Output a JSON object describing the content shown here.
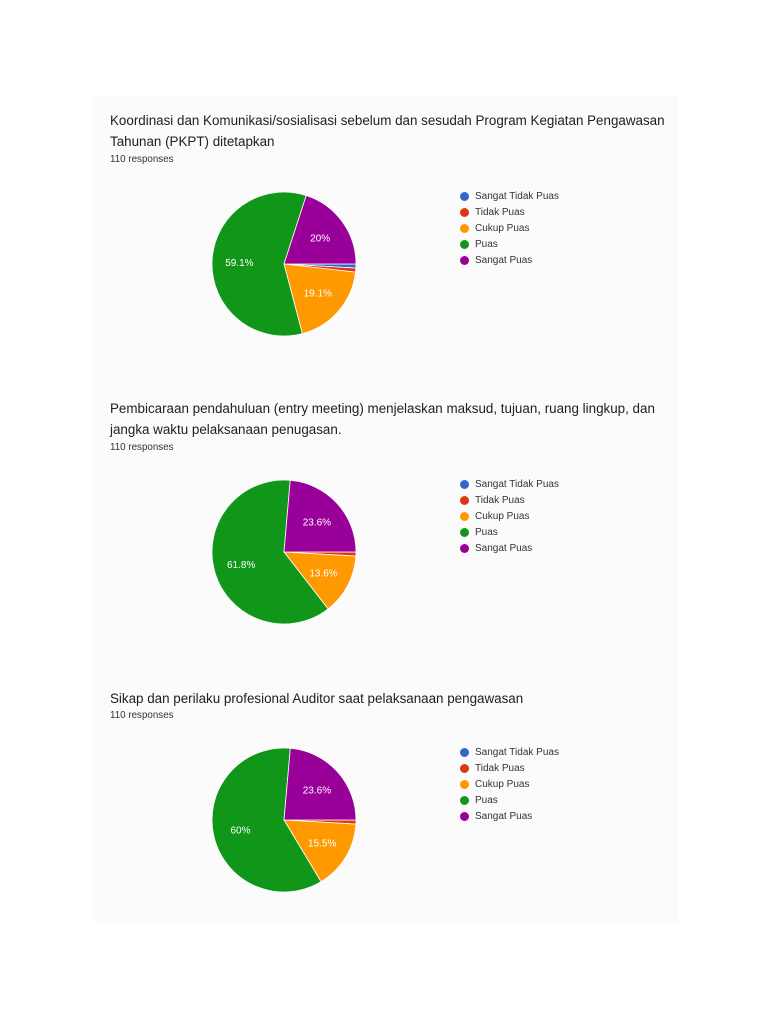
{
  "legend_labels": [
    "Sangat Tidak Puas",
    "Tidak Puas",
    "Cukup Puas",
    "Puas",
    "Sangat Puas"
  ],
  "colors": {
    "sangat_tidak_puas": "#3366cc",
    "tidak_puas": "#dc3912",
    "cukup_puas": "#ff9900",
    "puas": "#109618",
    "sangat_puas": "#990099"
  },
  "cards": [
    {
      "title": "Koordinasi dan Komunikasi/sosialisasi sebelum dan sesudah Program Kegiatan Pengawasan Tahunan (PKPT) ditetapkan",
      "responses": "110 responses",
      "labels": {
        "puas": "59.1%",
        "sangat_puas": "20%",
        "cukup_puas": "19.1%"
      }
    },
    {
      "title": "Pembicaraan pendahuluan (entry meeting) menjelaskan maksud, tujuan, ruang lingkup, dan jangka waktu pelaksanaan penugasan.",
      "responses": "110 responses",
      "labels": {
        "puas": "61.8%",
        "sangat_puas": "23.6%",
        "cukup_puas": "13.6%"
      }
    },
    {
      "title": "Sikap dan perilaku profesional Auditor saat pelaksanaan pengawasan",
      "responses": "110 responses",
      "labels": {
        "puas": "60%",
        "sangat_puas": "23.6%",
        "cukup_puas": "15.5%"
      }
    }
  ],
  "chart_data": [
    {
      "type": "pie",
      "title": "Koordinasi dan Komunikasi/sosialisasi sebelum dan sesudah Program Kegiatan Pengawasan Tahunan (PKPT) ditetapkan",
      "subtitle": "110 responses",
      "categories": [
        "Sangat Tidak Puas",
        "Tidak Puas",
        "Cukup Puas",
        "Puas",
        "Sangat Puas"
      ],
      "values": [
        0.9,
        0.9,
        19.1,
        59.1,
        20.0
      ],
      "counts": [
        1,
        1,
        21,
        65,
        22
      ],
      "data_labels": [
        "",
        "",
        "19.1%",
        "59.1%",
        "20%"
      ],
      "colors": [
        "#3366cc",
        "#dc3912",
        "#ff9900",
        "#109618",
        "#990099"
      ],
      "legend_position": "right"
    },
    {
      "type": "pie",
      "title": "Pembicaraan pendahuluan (entry meeting) menjelaskan maksud, tujuan, ruang lingkup, dan jangka waktu pelaksanaan penugasan.",
      "subtitle": "110 responses",
      "categories": [
        "Sangat Tidak Puas",
        "Tidak Puas",
        "Cukup Puas",
        "Puas",
        "Sangat Puas"
      ],
      "values": [
        0.0,
        0.9,
        13.6,
        61.8,
        23.6
      ],
      "counts": [
        0,
        1,
        15,
        68,
        26
      ],
      "data_labels": [
        "",
        "",
        "13.6%",
        "61.8%",
        "23.6%"
      ],
      "colors": [
        "#3366cc",
        "#dc3912",
        "#ff9900",
        "#109618",
        "#990099"
      ],
      "legend_position": "right"
    },
    {
      "type": "pie",
      "title": "Sikap dan perilaku profesional Auditor saat pelaksanaan pengawasan",
      "subtitle": "110 responses",
      "categories": [
        "Sangat Tidak Puas",
        "Tidak Puas",
        "Cukup Puas",
        "Puas",
        "Sangat Puas"
      ],
      "values": [
        0.0,
        0.9,
        15.5,
        60.0,
        23.6
      ],
      "counts": [
        0,
        1,
        17,
        66,
        26
      ],
      "data_labels": [
        "",
        "",
        "15.5%",
        "60%",
        "23.6%"
      ],
      "colors": [
        "#3366cc",
        "#dc3912",
        "#ff9900",
        "#109618",
        "#990099"
      ],
      "legend_position": "right"
    }
  ]
}
